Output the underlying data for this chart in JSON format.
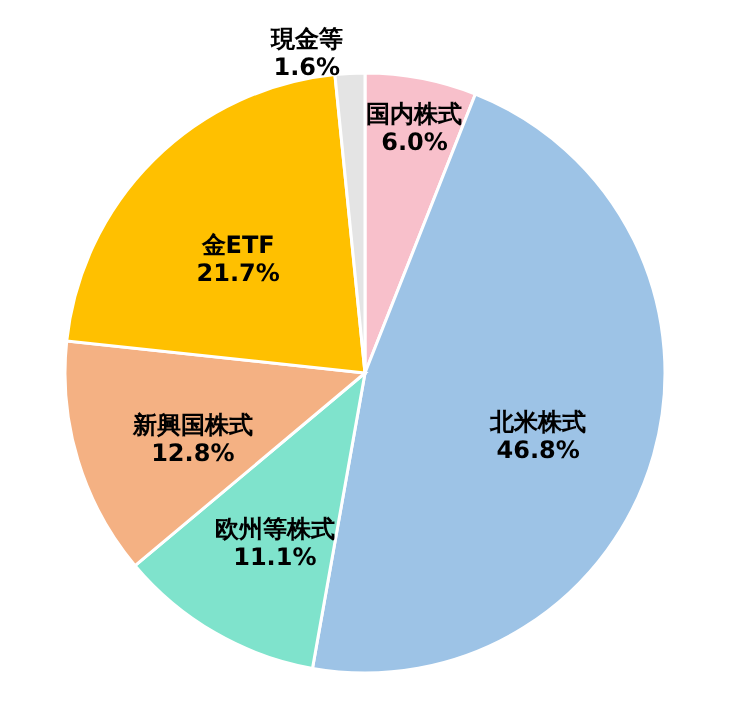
{
  "chart_data": {
    "type": "pie",
    "categories": [
      "国内株式",
      "北米株式",
      "欧州等株式",
      "新興国株式",
      "金ETF",
      "現金等"
    ],
    "values": [
      6.0,
      46.8,
      11.1,
      12.8,
      21.7,
      1.6
    ],
    "colors": [
      "#f8c0cb",
      "#9dc3e6",
      "#7fe3cc",
      "#f4b183",
      "#ffc000",
      "#e4e4e4"
    ],
    "value_labels": [
      "6.0%",
      "46.8%",
      "11.1%",
      "12.8%",
      "21.7%",
      "1.6%"
    ]
  }
}
